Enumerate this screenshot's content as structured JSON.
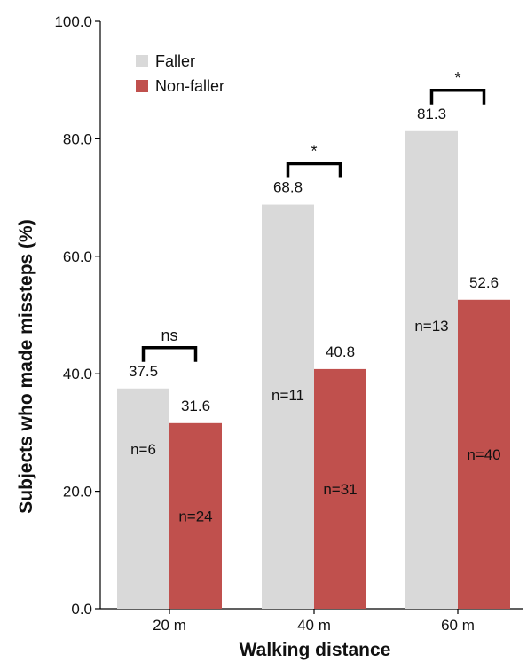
{
  "chart_data": {
    "type": "bar",
    "xlabel": "Walking distance",
    "ylabel": "Subjects who made missteps (%)",
    "ylim": [
      0,
      100
    ],
    "yticks": [
      "0.0",
      "20.0",
      "40.0",
      "60.0",
      "80.0",
      "100.0"
    ],
    "categories": [
      "20 m",
      "40 m",
      "60 m"
    ],
    "series": [
      {
        "name": "Faller",
        "color": "#d9d9d9",
        "values": [
          37.5,
          68.8,
          81.3
        ],
        "value_labels": [
          "37.5",
          "68.8",
          "81.3"
        ],
        "n_labels": [
          "n=6",
          "n=11",
          "n=13"
        ]
      },
      {
        "name": "Non-faller",
        "color": "#c0504d",
        "values": [
          31.6,
          40.8,
          52.6
        ],
        "value_labels": [
          "31.6",
          "40.8",
          "52.6"
        ],
        "n_labels": [
          "n=24",
          "n=31",
          "n=40"
        ]
      }
    ],
    "significance": [
      "ns",
      "*",
      "*"
    ],
    "legend_position": "top-left",
    "grid": false
  }
}
